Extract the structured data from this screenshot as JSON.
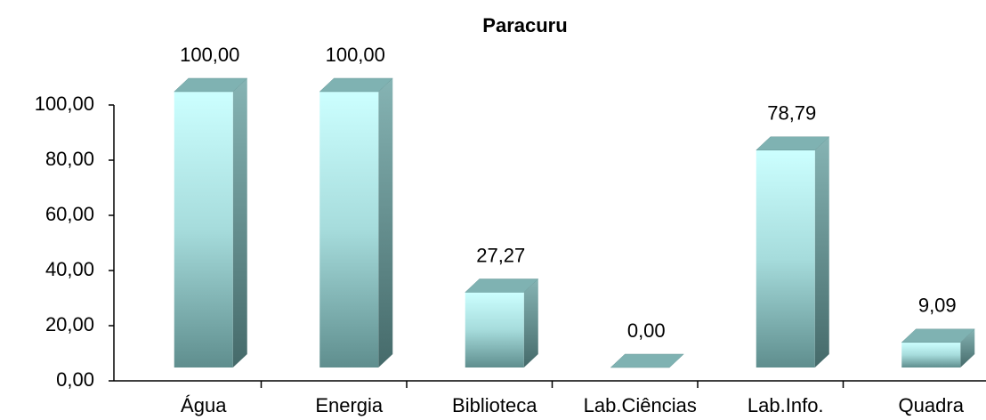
{
  "chart_data": {
    "type": "bar3d",
    "title": "Paracuru",
    "categories": [
      "Água",
      "Energia",
      "Biblioteca",
      "Lab.Ciências",
      "Lab.Info.",
      "Quadra"
    ],
    "values": [
      100,
      100,
      27.27,
      0,
      78.79,
      9.09
    ],
    "value_labels": [
      "100,00",
      "100,00",
      "27,27",
      "0,00",
      "78,79",
      "9,09"
    ],
    "ylim": [
      0,
      100
    ],
    "yticks": [
      {
        "value": 0,
        "label": "0,00"
      },
      {
        "value": 20,
        "label": "20,00"
      },
      {
        "value": 40,
        "label": "40,00"
      },
      {
        "value": 60,
        "label": "60,00"
      },
      {
        "value": 80,
        "label": "80,00"
      },
      {
        "value": 100,
        "label": "100,00"
      }
    ],
    "color": "#ccffff"
  }
}
